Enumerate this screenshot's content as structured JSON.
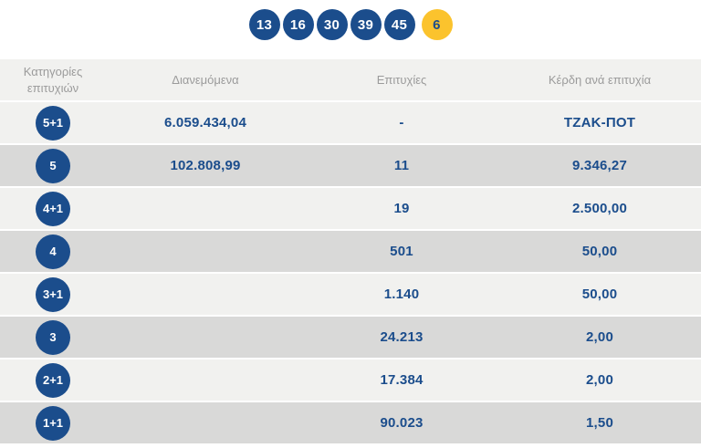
{
  "drawn_numbers": {
    "main": [
      "13",
      "16",
      "30",
      "39",
      "45"
    ],
    "joker": "6"
  },
  "table": {
    "headers": [
      "Κατηγορίες επιτυχιών",
      "Διανεμόμενα",
      "Επιτυχίες",
      "Κέρδη ανά επιτυχία"
    ],
    "rows": [
      {
        "category": "5+1",
        "distributed": "6.059.434,04",
        "wins": "-",
        "prize": "ΤΖΑΚ-ΠΟΤ"
      },
      {
        "category": "5",
        "distributed": "102.808,99",
        "wins": "11",
        "prize": "9.346,27"
      },
      {
        "category": "4+1",
        "distributed": "",
        "wins": "19",
        "prize": "2.500,00"
      },
      {
        "category": "4",
        "distributed": "",
        "wins": "501",
        "prize": "50,00"
      },
      {
        "category": "3+1",
        "distributed": "",
        "wins": "1.140",
        "prize": "50,00"
      },
      {
        "category": "3",
        "distributed": "",
        "wins": "24.213",
        "prize": "2,00"
      },
      {
        "category": "2+1",
        "distributed": "",
        "wins": "17.384",
        "prize": "2,00"
      },
      {
        "category": "1+1",
        "distributed": "",
        "wins": "90.023",
        "prize": "1,50"
      }
    ]
  },
  "colors": {
    "brand_blue": "#1b4d8c",
    "joker_yellow": "#fbc32d",
    "row_light": "#f1f1ef",
    "row_dark": "#d9d9d8",
    "header_text": "#9b9b9b"
  }
}
